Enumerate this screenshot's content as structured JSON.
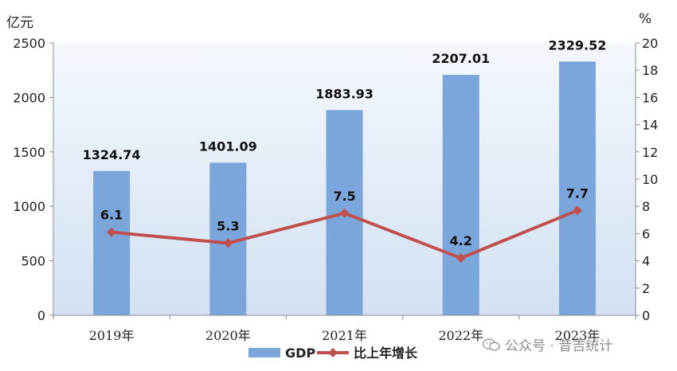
{
  "chart_data": {
    "type": "bar",
    "categories": [
      "2019年",
      "2020年",
      "2021年",
      "2022年",
      "2023年"
    ],
    "series": [
      {
        "name": "GDP",
        "kind": "bar",
        "axis": "left",
        "values": [
          1324.74,
          1401.09,
          1883.93,
          2207.01,
          2329.52
        ],
        "labels": [
          "1324.74",
          "1401.09",
          "1883.93",
          "2207.01",
          "2329.52"
        ]
      },
      {
        "name": "比上年增长",
        "kind": "line",
        "axis": "right",
        "values": [
          6.1,
          5.3,
          7.5,
          4.2,
          7.7
        ],
        "labels": [
          "6.1",
          "5.3",
          "7.5",
          "4.2",
          "7.7"
        ]
      }
    ],
    "left_axis": {
      "unit": "亿元",
      "ylim": [
        0,
        2500
      ],
      "ticks": [
        0,
        500,
        1000,
        1500,
        2000,
        2500
      ]
    },
    "right_axis": {
      "unit": "%",
      "ylim": [
        0,
        20
      ],
      "ticks": [
        0,
        2,
        4,
        6,
        8,
        10,
        12,
        14,
        16,
        18,
        20
      ]
    },
    "legend_position": "bottom",
    "grid": false,
    "colors": {
      "bar": "#7aa6dc",
      "line": "#c0504d",
      "bg_top": "#f4f8fd",
      "bg_bottom": "#d3e1f2"
    }
  },
  "watermark": "公众号 · 昔吉统计",
  "watermark_icon": "wechat-icon"
}
